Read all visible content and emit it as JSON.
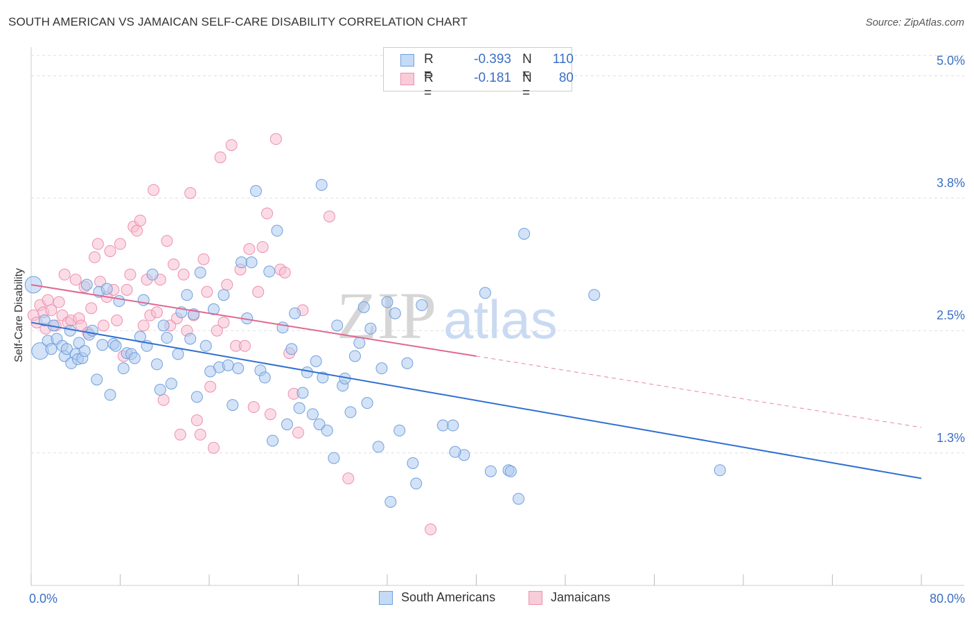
{
  "header": {
    "title": "SOUTH AMERICAN VS JAMAICAN SELF-CARE DISABILITY CORRELATION CHART",
    "source": "Source: ZipAtlas.com"
  },
  "legend": {
    "rows": [
      {
        "r_label": "R =",
        "r_value": "-0.393",
        "n_label": "N =",
        "n_value": "110"
      },
      {
        "r_label": "R =",
        "r_value": "-0.181",
        "n_label": "N =",
        "n_value": "80"
      }
    ],
    "bottom": [
      "South Americans",
      "Jamaicans"
    ]
  },
  "colors": {
    "south_american_fill": "#aecbf0",
    "south_american_stroke": "#6f9fdc",
    "south_american_line": "#2f6fd0",
    "jamaican_fill": "#f7c0d1",
    "jamaican_stroke": "#ec8fab",
    "jamaican_line": "#e0678f",
    "tick_text": "#3a6fc4",
    "grid": "#dddddd"
  },
  "chart_data": {
    "type": "scatter",
    "title": "SOUTH AMERICAN VS JAMAICAN SELF-CARE DISABILITY CORRELATION CHART",
    "xlabel": "",
    "ylabel": "Self-Care Disability",
    "xlim": [
      0,
      80
    ],
    "ylim": [
      0,
      5.2
    ],
    "x_tick_labels": [
      "0.0%",
      "80.0%"
    ],
    "y_ticks": [
      1.3,
      2.5,
      3.8,
      5.0
    ],
    "y_tick_labels": [
      "1.3%",
      "2.5%",
      "3.8%",
      "5.0%"
    ],
    "grid": true,
    "legend_position": "top-center",
    "watermark": {
      "zip": "ZIP",
      "atlas": "atlas"
    },
    "series": [
      {
        "name": "South Americans",
        "r": -0.393,
        "n": 110,
        "trend": {
          "x0": 0,
          "y0": 2.58,
          "x1": 80,
          "y1": 1.05
        },
        "points": [
          [
            0.2,
            2.95
          ],
          [
            0.8,
            2.3
          ],
          [
            1.2,
            2.6
          ],
          [
            1.5,
            2.4
          ],
          [
            1.8,
            2.32
          ],
          [
            2.0,
            2.55
          ],
          [
            2.3,
            2.42
          ],
          [
            2.8,
            2.35
          ],
          [
            3.0,
            2.25
          ],
          [
            3.2,
            2.32
          ],
          [
            3.5,
            2.5
          ],
          [
            3.6,
            2.18
          ],
          [
            4.0,
            2.27
          ],
          [
            4.2,
            2.22
          ],
          [
            4.3,
            2.38
          ],
          [
            4.6,
            2.23
          ],
          [
            4.8,
            2.3
          ],
          [
            5.0,
            2.95
          ],
          [
            5.2,
            2.46
          ],
          [
            5.5,
            2.5
          ],
          [
            5.9,
            2.02
          ],
          [
            6.1,
            2.88
          ],
          [
            6.4,
            2.36
          ],
          [
            6.8,
            2.91
          ],
          [
            7.1,
            1.87
          ],
          [
            7.4,
            2.37
          ],
          [
            7.6,
            2.35
          ],
          [
            7.9,
            2.79
          ],
          [
            8.3,
            2.13
          ],
          [
            8.6,
            2.28
          ],
          [
            9.0,
            2.27
          ],
          [
            9.3,
            2.23
          ],
          [
            9.8,
            2.44
          ],
          [
            10.1,
            2.8
          ],
          [
            10.4,
            2.35
          ],
          [
            10.9,
            3.05
          ],
          [
            11.3,
            2.17
          ],
          [
            11.6,
            1.92
          ],
          [
            11.9,
            2.55
          ],
          [
            12.2,
            2.43
          ],
          [
            12.6,
            1.98
          ],
          [
            13.2,
            2.27
          ],
          [
            13.5,
            2.68
          ],
          [
            14.0,
            2.85
          ],
          [
            14.3,
            2.42
          ],
          [
            14.6,
            2.66
          ],
          [
            14.9,
            1.85
          ],
          [
            15.2,
            3.07
          ],
          [
            15.7,
            2.35
          ],
          [
            16.1,
            2.1
          ],
          [
            16.4,
            2.71
          ],
          [
            16.9,
            2.14
          ],
          [
            17.3,
            2.85
          ],
          [
            17.7,
            2.16
          ],
          [
            18.1,
            1.77
          ],
          [
            18.6,
            2.13
          ],
          [
            18.9,
            3.17
          ],
          [
            19.4,
            2.62
          ],
          [
            19.8,
            3.17
          ],
          [
            20.2,
            3.87
          ],
          [
            20.6,
            2.11
          ],
          [
            21.0,
            2.04
          ],
          [
            21.4,
            3.08
          ],
          [
            21.7,
            1.42
          ],
          [
            22.1,
            3.48
          ],
          [
            22.6,
            2.53
          ],
          [
            23.0,
            1.58
          ],
          [
            23.4,
            2.32
          ],
          [
            23.7,
            2.67
          ],
          [
            24.1,
            1.74
          ],
          [
            24.4,
            1.89
          ],
          [
            24.8,
            2.09
          ],
          [
            25.3,
            1.68
          ],
          [
            25.6,
            2.2
          ],
          [
            25.9,
            1.58
          ],
          [
            26.2,
            2.04
          ],
          [
            26.6,
            1.52
          ],
          [
            27.2,
            1.25
          ],
          [
            27.5,
            2.55
          ],
          [
            28.0,
            1.96
          ],
          [
            28.2,
            2.03
          ],
          [
            28.7,
            1.7
          ],
          [
            29.1,
            2.25
          ],
          [
            29.5,
            2.38
          ],
          [
            29.9,
            2.73
          ],
          [
            30.2,
            1.79
          ],
          [
            30.5,
            2.52
          ],
          [
            31.2,
            1.36
          ],
          [
            31.5,
            2.13
          ],
          [
            32.0,
            2.78
          ],
          [
            32.3,
            0.82
          ],
          [
            32.7,
            2.67
          ],
          [
            33.1,
            1.52
          ],
          [
            33.8,
            2.18
          ],
          [
            34.3,
            1.2
          ],
          [
            34.6,
            1.0
          ],
          [
            37.0,
            1.57
          ],
          [
            37.9,
            1.57
          ],
          [
            38.9,
            1.28
          ],
          [
            38.1,
            1.31
          ],
          [
            40.8,
            2.87
          ],
          [
            41.3,
            1.12
          ],
          [
            42.9,
            1.13
          ],
          [
            43.1,
            1.12
          ],
          [
            43.8,
            0.85
          ],
          [
            44.3,
            3.45
          ],
          [
            50.6,
            2.85
          ],
          [
            61.9,
            1.13
          ],
          [
            35.1,
            2.75
          ],
          [
            26.1,
            3.93
          ]
        ]
      },
      {
        "name": "Jamaicans",
        "r": -0.181,
        "n": 80,
        "trend": {
          "x0": 0,
          "y0": 2.95,
          "x1": 40,
          "y1": 2.25,
          "dash_to_x": 80,
          "dash_to_y": 1.55
        },
        "points": [
          [
            0.2,
            2.65
          ],
          [
            0.5,
            2.58
          ],
          [
            0.8,
            2.75
          ],
          [
            1.1,
            2.68
          ],
          [
            1.3,
            2.52
          ],
          [
            1.5,
            2.8
          ],
          [
            1.8,
            2.7
          ],
          [
            2.2,
            2.55
          ],
          [
            2.5,
            2.78
          ],
          [
            2.8,
            2.65
          ],
          [
            3.0,
            3.05
          ],
          [
            3.3,
            2.58
          ],
          [
            3.6,
            2.6
          ],
          [
            4.0,
            3.0
          ],
          [
            4.3,
            2.62
          ],
          [
            4.5,
            2.55
          ],
          [
            4.8,
            2.93
          ],
          [
            5.1,
            2.48
          ],
          [
            5.4,
            2.72
          ],
          [
            5.7,
            3.22
          ],
          [
            6.0,
            3.35
          ],
          [
            6.2,
            2.98
          ],
          [
            6.5,
            2.55
          ],
          [
            6.8,
            2.83
          ],
          [
            7.1,
            3.28
          ],
          [
            7.4,
            2.9
          ],
          [
            7.7,
            2.6
          ],
          [
            8.0,
            3.35
          ],
          [
            8.3,
            2.25
          ],
          [
            8.6,
            2.9
          ],
          [
            8.9,
            3.05
          ],
          [
            9.2,
            3.52
          ],
          [
            9.5,
            3.48
          ],
          [
            9.8,
            3.58
          ],
          [
            10.1,
            2.55
          ],
          [
            10.4,
            3.0
          ],
          [
            10.7,
            2.65
          ],
          [
            11.0,
            3.88
          ],
          [
            11.3,
            2.68
          ],
          [
            11.6,
            3.0
          ],
          [
            11.9,
            1.82
          ],
          [
            12.2,
            3.38
          ],
          [
            12.5,
            2.55
          ],
          [
            12.8,
            3.15
          ],
          [
            13.1,
            2.62
          ],
          [
            13.4,
            1.48
          ],
          [
            13.7,
            3.05
          ],
          [
            14.0,
            2.5
          ],
          [
            14.3,
            3.85
          ],
          [
            14.6,
            2.65
          ],
          [
            14.9,
            1.62
          ],
          [
            15.2,
            1.48
          ],
          [
            15.5,
            3.2
          ],
          [
            15.8,
            2.88
          ],
          [
            16.1,
            1.95
          ],
          [
            16.4,
            1.35
          ],
          [
            16.7,
            2.5
          ],
          [
            17.0,
            4.2
          ],
          [
            17.3,
            2.58
          ],
          [
            17.6,
            2.95
          ],
          [
            18.0,
            4.32
          ],
          [
            18.4,
            2.35
          ],
          [
            18.8,
            3.1
          ],
          [
            19.2,
            2.35
          ],
          [
            19.6,
            3.3
          ],
          [
            20.0,
            1.75
          ],
          [
            20.4,
            2.88
          ],
          [
            20.8,
            3.32
          ],
          [
            21.2,
            3.65
          ],
          [
            21.5,
            1.68
          ],
          [
            22.0,
            4.38
          ],
          [
            22.4,
            3.1
          ],
          [
            22.8,
            3.07
          ],
          [
            23.2,
            2.28
          ],
          [
            23.6,
            1.88
          ],
          [
            24.0,
            1.5
          ],
          [
            24.4,
            2.7
          ],
          [
            26.8,
            3.62
          ],
          [
            28.5,
            1.05
          ],
          [
            35.9,
            0.55
          ]
        ]
      }
    ]
  }
}
